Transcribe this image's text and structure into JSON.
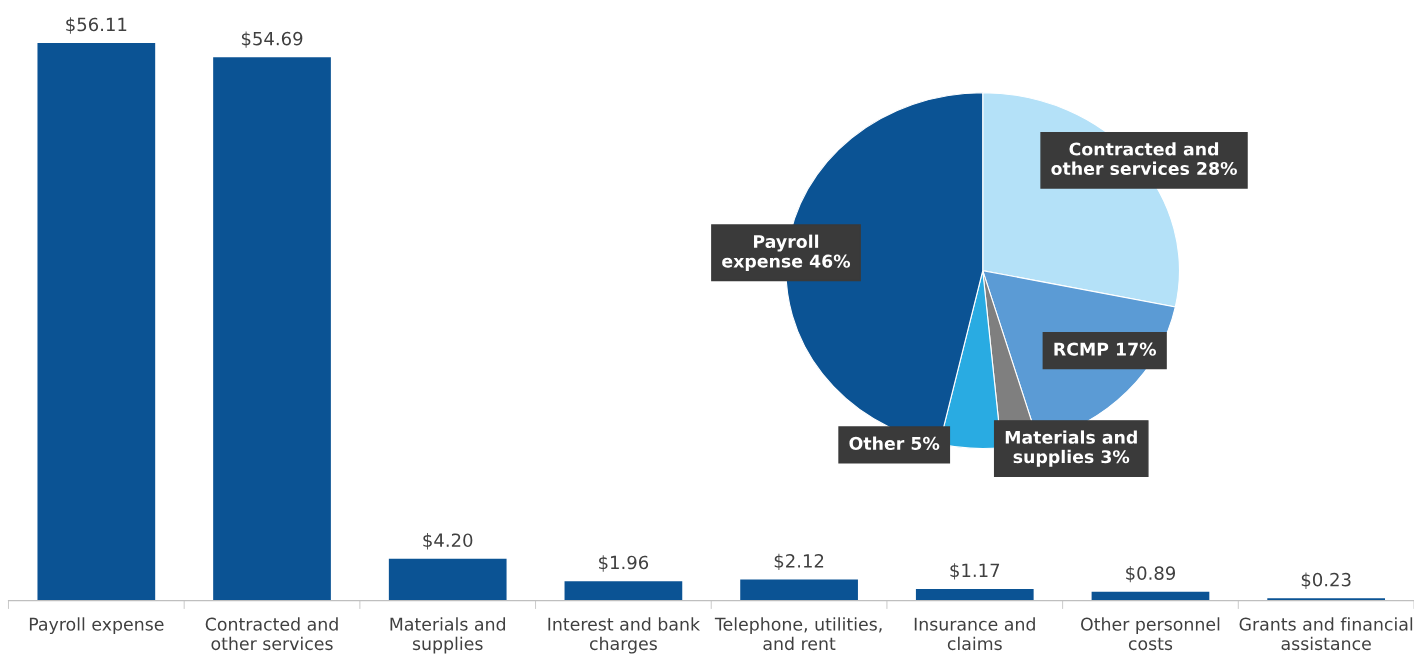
{
  "chart_data": [
    {
      "type": "bar",
      "categories": [
        "Payroll expense",
        "Contracted and\nother services",
        "Materials and\nsupplies",
        "Interest and bank\ncharges",
        "Telephone, utilities,\nand rent",
        "Insurance and\nclaims",
        "Other personnel\ncosts",
        "Grants and financial\nassistance"
      ],
      "values": [
        56.11,
        54.69,
        4.2,
        1.96,
        2.12,
        1.17,
        0.89,
        0.23
      ],
      "value_labels": [
        "$56.11",
        "$54.69",
        "$4.20",
        "$1.96",
        "$2.12",
        "$1.17",
        "$0.89",
        "$0.23"
      ],
      "color": "#0b5394"
    },
    {
      "type": "pie",
      "categories": [
        "Contracted and\nother services",
        "RCMP",
        "Materials and\nsupplies",
        "Other",
        "Payroll\nexpense"
      ],
      "values": [
        28,
        17,
        3,
        5,
        46
      ],
      "value_labels": [
        "28%",
        "17%",
        "3%",
        "5%",
        "46%"
      ],
      "colors": [
        "#b4e1f8",
        "#5b9bd5",
        "#7f7f7f",
        "#29abe2",
        "#0b5394"
      ]
    }
  ]
}
